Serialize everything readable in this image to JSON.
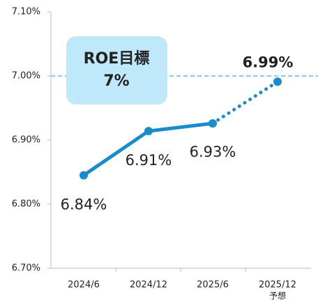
{
  "chart_data": {
    "type": "line",
    "categories": [
      "2024/6",
      "2024/12",
      "2025/6",
      "2025/12"
    ],
    "category_sublabels": [
      null,
      null,
      null,
      "予想"
    ],
    "series": [
      {
        "name": "ROE",
        "color": "#1a8bcb",
        "values": [
          6.845,
          6.914,
          6.926,
          6.991
        ],
        "value_labels": [
          "6.84%",
          "6.91%",
          "6.93%",
          "6.99%"
        ]
      }
    ],
    "forecast_from": 3,
    "forecast_line_style": "dotted",
    "ylim": [
      6.7,
      7.1
    ],
    "yticks": [
      {
        "value": 6.7,
        "label": "6.70%"
      },
      {
        "value": 6.8,
        "label": "6.80%"
      },
      {
        "value": 6.9,
        "label": "6.90%"
      },
      {
        "value": 7.0,
        "label": "7.00%"
      },
      {
        "value": 7.1,
        "label": "7.10%"
      }
    ],
    "target": {
      "value": 7.0,
      "color": "#7fcdf4",
      "label": [
        "ROE目標",
        "7%"
      ]
    }
  }
}
